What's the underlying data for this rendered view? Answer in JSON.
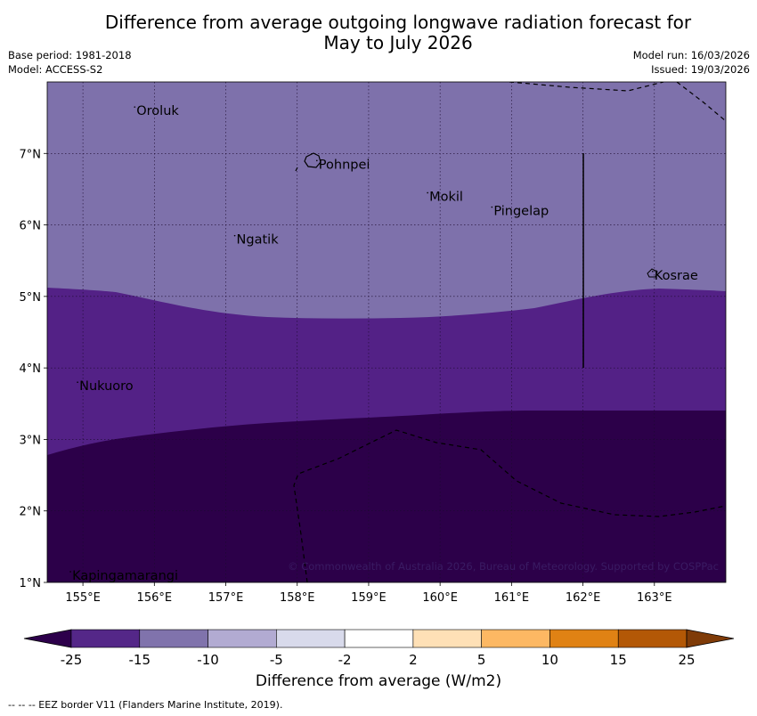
{
  "title": {
    "line1": "Difference from average outgoing longwave radiation forecast for",
    "line2": "May to July 2026"
  },
  "meta": {
    "base_period": "Base period: 1981-2018",
    "model": "Model: ACCESS-S2",
    "model_run": "Model run: 16/03/2026",
    "issued": "Issued: 19/03/2026"
  },
  "map": {
    "lon_ticks": [
      "155°E",
      "156°E",
      "157°E",
      "158°E",
      "159°E",
      "160°E",
      "161°E",
      "162°E",
      "163°E"
    ],
    "lon_values": [
      155,
      156,
      157,
      158,
      159,
      160,
      161,
      162,
      163
    ],
    "lat_ticks": [
      "1°N",
      "2°N",
      "3°N",
      "4°N",
      "5°N",
      "6°N",
      "7°N"
    ],
    "lat_values": [
      1,
      2,
      3,
      4,
      5,
      6,
      7
    ],
    "lon_range": [
      154.5,
      164
    ],
    "lat_range": [
      1,
      8
    ],
    "places": [
      {
        "name": "Oroluk",
        "lon": 155.75,
        "lat": 7.6
      },
      {
        "name": "Pohnpei",
        "lon": 158.3,
        "lat": 6.85
      },
      {
        "name": "Mokil",
        "lon": 159.85,
        "lat": 6.4
      },
      {
        "name": "Pingelap",
        "lon": 160.75,
        "lat": 6.2
      },
      {
        "name": "Ngatik",
        "lon": 157.15,
        "lat": 5.8
      },
      {
        "name": "Kosrae",
        "lon": 163.0,
        "lat": 5.3
      },
      {
        "name": "Nukuoro",
        "lon": 154.95,
        "lat": 3.75
      },
      {
        "name": "Kapingamarangi",
        "lon": 154.85,
        "lat": 1.1
      }
    ],
    "copyright": "© Commonwealth of Australia 2026, Bureau of Meteorology. Supported by COSPPac",
    "colors": {
      "band_top": "#7e71ab",
      "band_mid": "#532186",
      "band_low": "#2c0049"
    }
  },
  "colorbar": {
    "labels": [
      "-25",
      "-15",
      "-10",
      "-5",
      "-2",
      "2",
      "5",
      "10",
      "15",
      "25"
    ],
    "colors": [
      "#2d004b",
      "#542788",
      "#8073ac",
      "#b2abd2",
      "#d8daeb",
      "#ffffff",
      "#fee0b6",
      "#fdb863",
      "#e08214",
      "#b35806",
      "#7f3b08"
    ],
    "axis_label": "Difference from average (W/m2)"
  },
  "footnote": "--  --  -- EEZ border V11 (Flanders Marine Institute, 2019)."
}
